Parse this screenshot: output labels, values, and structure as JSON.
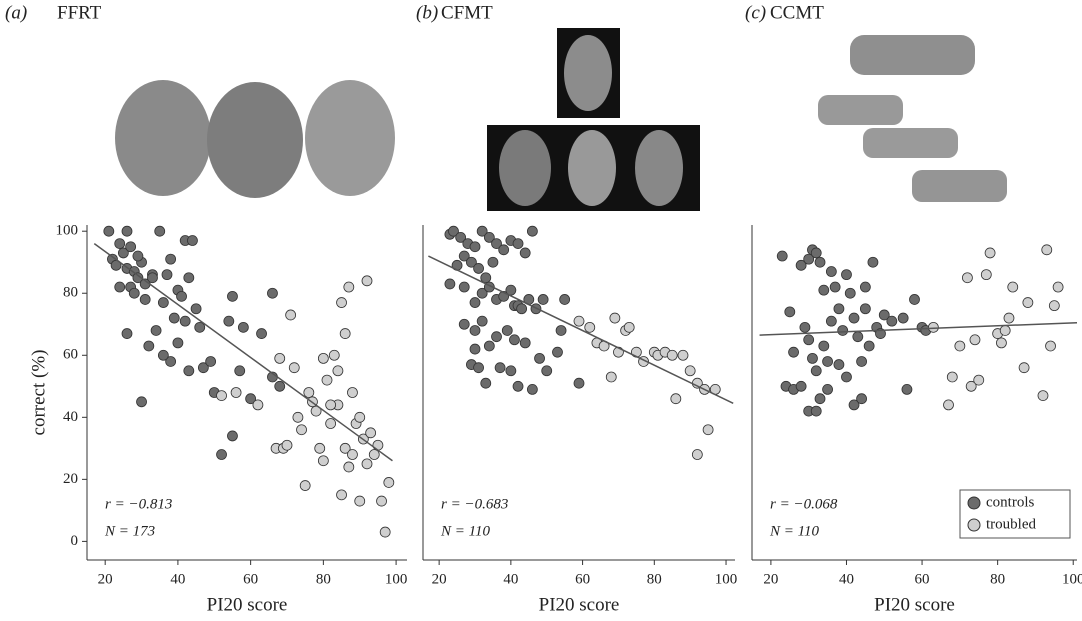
{
  "chart_data": [
    {
      "type": "scatter",
      "panel_label": "(a)",
      "title": "FFRT",
      "xlabel": "PI20 score",
      "ylabel": "correct (%)",
      "xlim": [
        15,
        103
      ],
      "ylim": [
        -6,
        102
      ],
      "xticks": [
        20,
        40,
        60,
        80,
        100
      ],
      "yticks": [
        0,
        20,
        40,
        60,
        80,
        100
      ],
      "annotations": [
        "r = −0.813",
        "N = 173"
      ],
      "trend_line": {
        "color": "#555555",
        "x": [
          17,
          99
        ],
        "values": [
          96,
          26
        ]
      },
      "series": [
        {
          "color": "#6b6b6b",
          "x": [
            21,
            24,
            26,
            22,
            25,
            27,
            23,
            26,
            28,
            30,
            24,
            27,
            29,
            31,
            33,
            35,
            28,
            31,
            26,
            30,
            32,
            34,
            36,
            37,
            38,
            39,
            40,
            41,
            42,
            44,
            43,
            45,
            42,
            46,
            38,
            40,
            43,
            47,
            49,
            52,
            55,
            54,
            55,
            58,
            57,
            60,
            63,
            66,
            66,
            68,
            50,
            36,
            33,
            29
          ],
          "values": [
            100,
            96,
            100,
            91,
            93,
            95,
            89,
            88,
            87,
            90,
            82,
            82,
            85,
            83,
            86,
            100,
            80,
            78,
            67,
            45,
            63,
            68,
            77,
            86,
            91,
            72,
            81,
            79,
            97,
            97,
            85,
            75,
            71,
            69,
            58,
            64,
            55,
            56,
            58,
            28,
            34,
            71,
            79,
            69,
            55,
            46,
            67,
            80,
            53,
            50,
            48,
            60,
            85,
            92
          ]
        },
        {
          "color": "#cfcfcf",
          "x": [
            52,
            56,
            62,
            67,
            69,
            70,
            68,
            71,
            72,
            73,
            74,
            75,
            76,
            77,
            78,
            79,
            80,
            81,
            82,
            83,
            84,
            85,
            86,
            87,
            86,
            87,
            88,
            89,
            90,
            91,
            92,
            93,
            94,
            95,
            96,
            97,
            98,
            85,
            88,
            80,
            82,
            84,
            90,
            92
          ],
          "values": [
            47,
            48,
            44,
            30,
            30,
            31,
            59,
            73,
            56,
            40,
            36,
            18,
            48,
            45,
            42,
            30,
            59,
            52,
            38,
            60,
            44,
            77,
            67,
            82,
            30,
            24,
            48,
            38,
            13,
            33,
            84,
            35,
            28,
            31,
            13,
            3,
            19,
            15,
            28,
            26,
            44,
            55,
            40,
            25
          ]
        }
      ]
    },
    {
      "type": "scatter",
      "panel_label": "(b)",
      "title": "CFMT",
      "xlabel": "PI20 score",
      "xlim": [
        15.5,
        102.5
      ],
      "ylim": [
        -6,
        102
      ],
      "xticks": [
        20,
        40,
        60,
        80,
        100
      ],
      "annotations": [
        "r = −0.683",
        "N = 110"
      ],
      "trend_line": {
        "color": "#555555",
        "x": [
          17,
          102
        ],
        "values": [
          92,
          44.5
        ]
      },
      "series": [
        {
          "color": "#6b6b6b",
          "x": [
            23,
            24,
            26,
            28,
            30,
            32,
            34,
            25,
            27,
            29,
            31,
            33,
            35,
            36,
            38,
            40,
            42,
            44,
            46,
            23,
            27,
            30,
            32,
            34,
            36,
            38,
            40,
            41,
            42,
            43,
            45,
            47,
            49,
            30,
            32,
            34,
            36,
            39,
            41,
            44,
            29,
            31,
            33,
            37,
            40,
            42,
            46,
            48,
            50,
            53,
            55,
            54,
            59,
            30,
            27
          ],
          "values": [
            99,
            100,
            98,
            96,
            95,
            100,
            98,
            89,
            92,
            90,
            88,
            85,
            90,
            96,
            94,
            97,
            96,
            93,
            100,
            83,
            82,
            77,
            80,
            82,
            78,
            79,
            81,
            76,
            76,
            75,
            78,
            75,
            78,
            68,
            71,
            63,
            66,
            68,
            65,
            64,
            57,
            56,
            51,
            56,
            55,
            50,
            49,
            59,
            55,
            61,
            78,
            68,
            51,
            62,
            70
          ]
        },
        {
          "color": "#cfcfcf",
          "x": [
            59,
            62,
            64,
            66,
            68,
            69,
            70,
            72,
            73,
            75,
            77,
            80,
            81,
            83,
            85,
            86,
            88,
            90,
            92,
            92,
            94,
            95,
            97
          ],
          "values": [
            71,
            69,
            64,
            63,
            53,
            72,
            61,
            68,
            69,
            61,
            58,
            61,
            60,
            61,
            60,
            46,
            60,
            55,
            51,
            28,
            49,
            36,
            49
          ]
        }
      ]
    },
    {
      "type": "scatter",
      "panel_label": "(c)",
      "title": "CCMT",
      "xlabel": "PI20 score",
      "xlim": [
        15,
        101
      ],
      "ylim": [
        -6,
        102
      ],
      "xticks": [
        20,
        40,
        60,
        80,
        100
      ],
      "annotations": [
        "r = −0.068",
        "N = 110"
      ],
      "trend_line": {
        "color": "#555555",
        "x": [
          17,
          101
        ],
        "values": [
          66.5,
          70.5
        ]
      },
      "legend": "lower right",
      "series": [
        {
          "name": "controls",
          "color": "#6b6b6b",
          "x": [
            23,
            24,
            25,
            26,
            28,
            30,
            31,
            32,
            33,
            29,
            30,
            31,
            32,
            33,
            34,
            35,
            36,
            37,
            38,
            39,
            40,
            41,
            42,
            43,
            44,
            45,
            46,
            47,
            48,
            30,
            32,
            35,
            42,
            44,
            28,
            26,
            38,
            40,
            45,
            50,
            52,
            55,
            56,
            58,
            60,
            61,
            49,
            36,
            34
          ],
          "values": [
            92,
            50,
            74,
            49,
            89,
            91,
            94,
            93,
            90,
            69,
            65,
            59,
            55,
            46,
            63,
            58,
            71,
            82,
            75,
            68,
            86,
            80,
            72,
            66,
            58,
            82,
            63,
            90,
            69,
            42,
            42,
            49,
            44,
            46,
            50,
            61,
            57,
            53,
            75,
            73,
            71,
            72,
            49,
            78,
            69,
            68,
            67,
            87,
            81
          ]
        },
        {
          "name": "troubled",
          "color": "#cfcfcf",
          "x": [
            63,
            67,
            68,
            70,
            72,
            73,
            74,
            75,
            77,
            78,
            80,
            82,
            83,
            84,
            87,
            88,
            92,
            93,
            94,
            96,
            95,
            81
          ],
          "values": [
            69,
            44,
            53,
            63,
            85,
            50,
            65,
            52,
            86,
            93,
            67,
            68,
            72,
            82,
            56,
            77,
            47,
            94,
            63,
            82,
            76,
            64
          ]
        }
      ]
    }
  ]
}
